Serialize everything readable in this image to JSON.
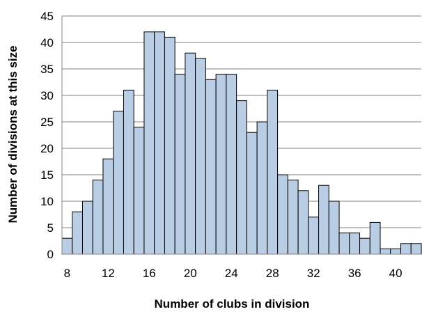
{
  "chart_data": {
    "type": "bar",
    "title": "",
    "xlabel": "Number of clubs in division",
    "ylabel": "Number of divisions at this size",
    "x": [
      8,
      9,
      10,
      11,
      12,
      13,
      14,
      15,
      16,
      17,
      18,
      19,
      20,
      21,
      22,
      23,
      24,
      25,
      26,
      27,
      28,
      29,
      30,
      31,
      32,
      33,
      34,
      35,
      36,
      37,
      38,
      39,
      40,
      41,
      42
    ],
    "values": [
      3,
      8,
      10,
      14,
      18,
      27,
      31,
      24,
      42,
      42,
      41,
      34,
      38,
      37,
      33,
      34,
      34,
      29,
      23,
      25,
      31,
      15,
      14,
      12,
      7,
      13,
      10,
      4,
      4,
      3,
      6,
      1,
      1,
      2,
      2
    ],
    "x_tick_labels": [
      "8",
      "12",
      "16",
      "20",
      "24",
      "28",
      "32",
      "36",
      "40"
    ],
    "y_tick_labels": [
      "0",
      "5",
      "10",
      "15",
      "20",
      "25",
      "30",
      "35",
      "40",
      "45"
    ],
    "ylim": [
      0,
      45
    ],
    "grid": true,
    "legend": "none",
    "bar_color": "#b9cde5",
    "bar_edge_color": "#000000"
  }
}
